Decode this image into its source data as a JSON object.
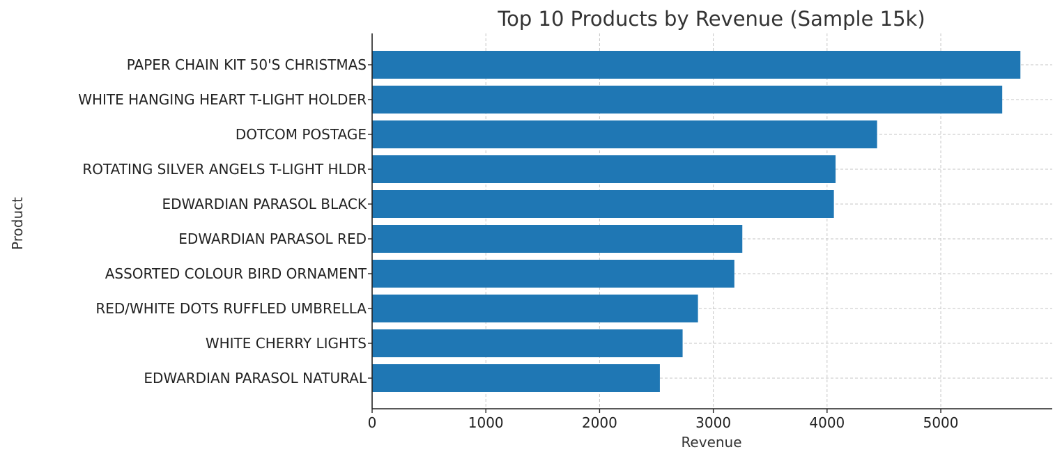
{
  "chart_data": {
    "type": "bar",
    "orientation": "horizontal",
    "title": "Top 10 Products by Revenue (Sample 15k)",
    "xlabel": "Revenue",
    "ylabel": "Product",
    "categories": [
      "PAPER CHAIN KIT 50'S CHRISTMAS ",
      "WHITE HANGING HEART T-LIGHT HOLDER",
      "DOTCOM POSTAGE",
      "ROTATING SILVER ANGELS T-LIGHT HLDR",
      "EDWARDIAN PARASOL BLACK",
      "EDWARDIAN PARASOL RED",
      "ASSORTED COLOUR BIRD ORNAMENT",
      "RED/WHITE DOTS RUFFLED UMBRELLA",
      "WHITE CHERRY LIGHTS",
      "EDWARDIAN PARASOL NATURAL"
    ],
    "values": [
      5700,
      5540,
      4440,
      4075,
      4060,
      3255,
      3185,
      2865,
      2730,
      2530
    ],
    "xlim": [
      0,
      5980
    ],
    "xticks": [
      0,
      1000,
      2000,
      3000,
      4000,
      5000
    ],
    "grid": true,
    "bar_color": "#1f77b4"
  }
}
